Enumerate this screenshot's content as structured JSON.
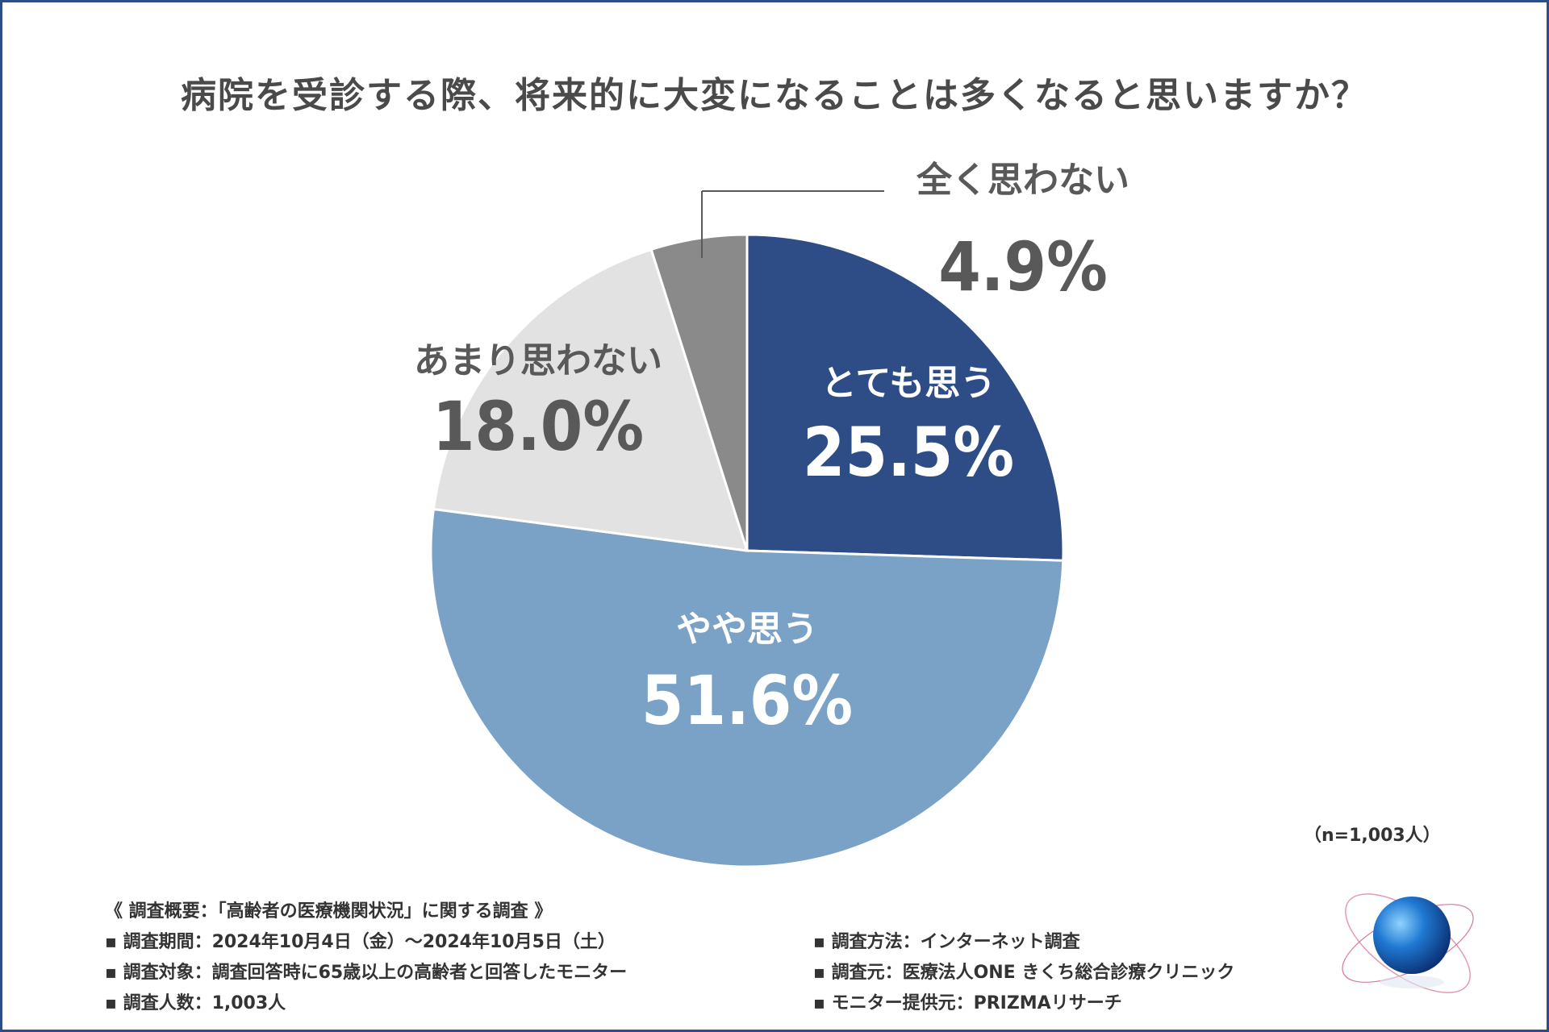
{
  "chart_data": {
    "type": "pie",
    "title": "病院を受診する際、将来的に大変になることは多くなると思いますか？",
    "start": "12 o'clock, clockwise",
    "categories": [
      "とても思う",
      "やや思う",
      "あまり思わない",
      "全く思わない"
    ],
    "values": [
      25.5,
      51.6,
      18.0,
      4.9
    ],
    "value_labels": [
      "25.5%",
      "51.6%",
      "18.0%",
      "4.9%"
    ],
    "colors": [
      "#2e4d87",
      "#79a2c6",
      "#e2e2e2",
      "#8a8a8a"
    ],
    "label_colors": [
      "#ffffff",
      "#ffffff",
      "#595959",
      "#595959"
    ],
    "sample": "（n=1,003人）"
  },
  "notes_left": [
    "《 調査概要：「高齢者の医療機関状況」に関する調査 》",
    "▪ 調査期間：2024年10月4日（金）～2024年10月5日（土）",
    "▪ 調査対象：調査回答時に65歳以上の高齢者と回答したモニター",
    "▪ 調査人数：1,003人"
  ],
  "notes_right": [
    "▪ 調査方法：インターネット調査",
    "▪ 調査元：医療法人ONE きくち総合診療クリニック",
    "▪ モニター提供元：PRIZMAリサーチ"
  ],
  "logo_icon": "globe-orbit-logo"
}
